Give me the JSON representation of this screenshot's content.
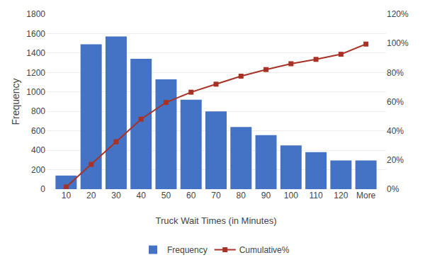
{
  "chart_data": {
    "type": "bar",
    "xlabel": "Truck Wait Times (in Minutes)",
    "ylabel": "Frequency",
    "categories": [
      "10",
      "20",
      "30",
      "40",
      "50",
      "60",
      "70",
      "80",
      "90",
      "100",
      "110",
      "120",
      "More"
    ],
    "series": [
      {
        "name": "Frequency",
        "type": "bar",
        "color": "#4472C4",
        "values": [
          140,
          1490,
          1570,
          1340,
          1130,
          920,
          800,
          640,
          555,
          450,
          380,
          295,
          295
        ]
      },
      {
        "name": "Cumulative%",
        "type": "line",
        "axis": "y2",
        "color": "#A93226",
        "marker": "square",
        "values": [
          1.5,
          17.0,
          32.5,
          48.0,
          59.5,
          66.5,
          72.0,
          77.5,
          82.0,
          86.0,
          89.0,
          92.5,
          99.5
        ]
      }
    ],
    "ylim": [
      0,
      1800
    ],
    "yticks": [
      0,
      200,
      400,
      600,
      800,
      1000,
      1200,
      1400,
      1600,
      1800
    ],
    "y2lim": [
      0,
      120
    ],
    "y2ticks": [
      {
        "value": 0,
        "label": "0%"
      },
      {
        "value": 20,
        "label": "20%"
      },
      {
        "value": 40,
        "label": "40%"
      },
      {
        "value": 60,
        "label": "60%"
      },
      {
        "value": 80,
        "label": "80%"
      },
      {
        "value": 100,
        "label": "100%"
      },
      {
        "value": 120,
        "label": "120%"
      }
    ],
    "grid": true,
    "legend": "bottom"
  }
}
